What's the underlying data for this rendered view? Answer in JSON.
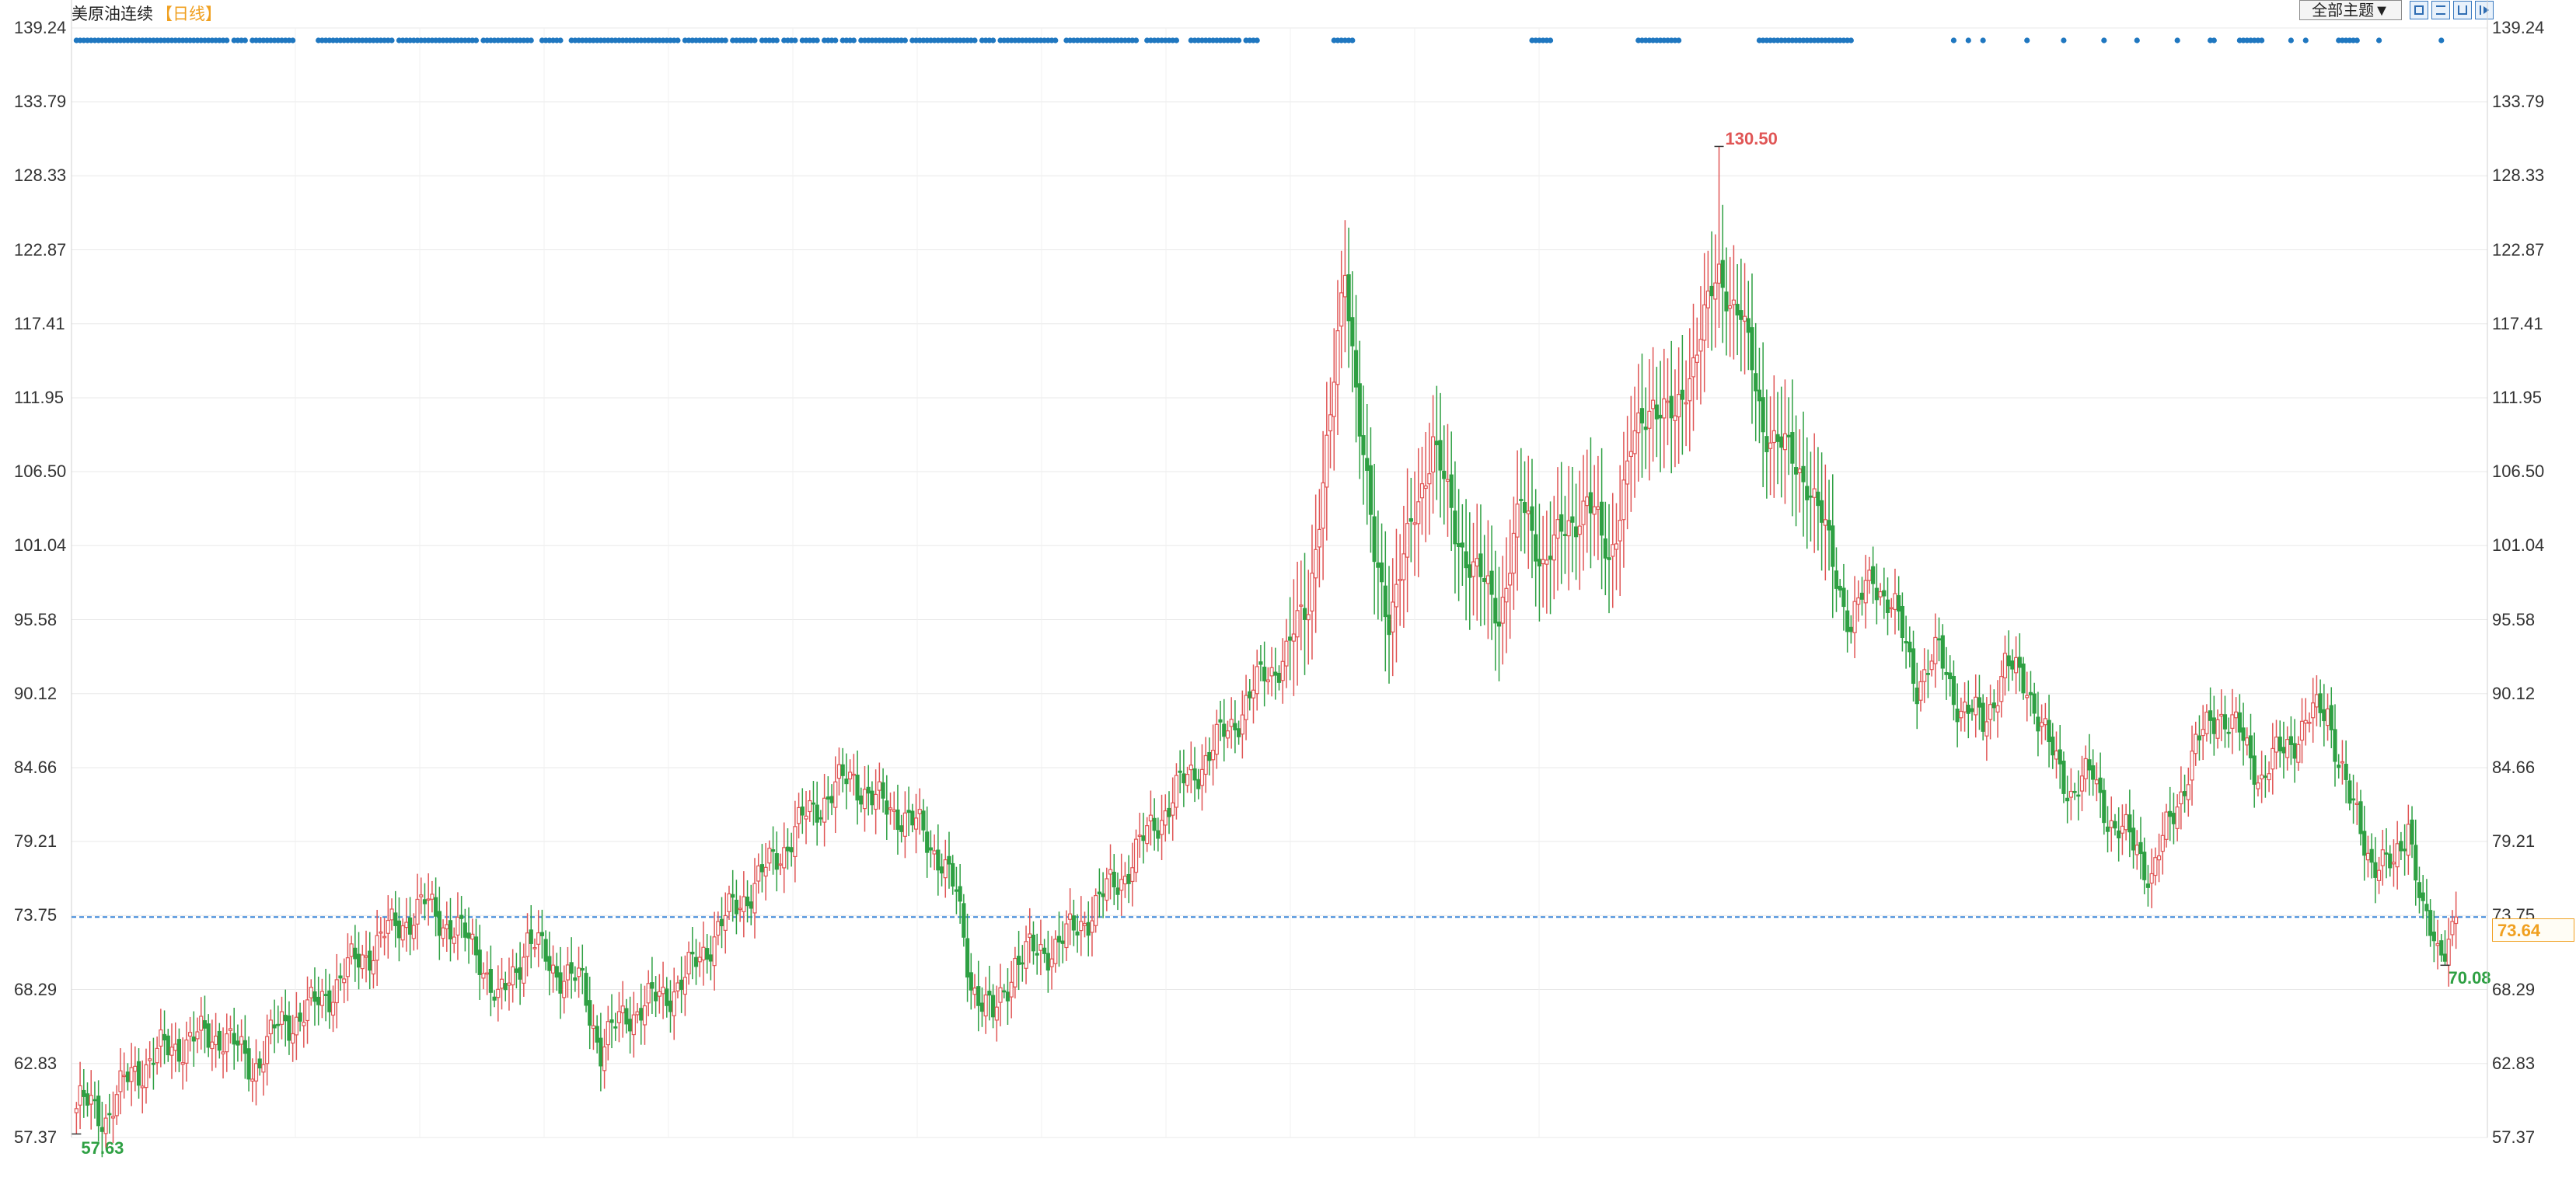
{
  "header": {
    "title": "美原油连续",
    "period_tag": "【日线】"
  },
  "toolbar": {
    "theme_label": "全部主题▼",
    "tools": [
      "fit-all-icon",
      "fit-width-icon",
      "chart-mode-icon",
      "jump-latest-icon"
    ]
  },
  "colors": {
    "up": "#e05555",
    "down": "#2ea043",
    "dots": "#1f77c0",
    "last_price": "#f0a020",
    "grid": "#e8e8e8",
    "hline": "#3a86d8"
  },
  "chart_data": {
    "type": "candlestick",
    "y_ticks": [
      "139.24",
      "133.79",
      "128.33",
      "122.87",
      "117.41",
      "111.95",
      "106.50",
      "101.04",
      "95.58",
      "90.12",
      "84.66",
      "79.21",
      "73.75",
      "68.29",
      "62.83",
      "57.37"
    ],
    "ylim": [
      57.37,
      139.24
    ],
    "last_price": "73.64",
    "max": {
      "label": "130.50",
      "value": 130.5
    },
    "min_start": {
      "label": "57.63",
      "value": 57.63
    },
    "min_end": {
      "label": "70.08",
      "value": 70.08
    },
    "close_path": [
      [
        0,
        60.0
      ],
      [
        8,
        59.0
      ],
      [
        15,
        62.0
      ],
      [
        22,
        63.5
      ],
      [
        30,
        64.5
      ],
      [
        40,
        65.0
      ],
      [
        48,
        62.5
      ],
      [
        55,
        65.5
      ],
      [
        65,
        67.0
      ],
      [
        75,
        70.0
      ],
      [
        85,
        72.5
      ],
      [
        95,
        74.5
      ],
      [
        102,
        73.0
      ],
      [
        110,
        71.0
      ],
      [
        115,
        67.0
      ],
      [
        123,
        72.0
      ],
      [
        130,
        70.0
      ],
      [
        138,
        68.5
      ],
      [
        143,
        64.0
      ],
      [
        150,
        66.5
      ],
      [
        158,
        67.5
      ],
      [
        166,
        69.0
      ],
      [
        173,
        72.0
      ],
      [
        180,
        74.5
      ],
      [
        188,
        77.0
      ],
      [
        196,
        80.0
      ],
      [
        204,
        82.5
      ],
      [
        212,
        84.0
      ],
      [
        218,
        82.0
      ],
      [
        224,
        81.5
      ],
      [
        230,
        80.0
      ],
      [
        236,
        78.0
      ],
      [
        240,
        75.0
      ],
      [
        244,
        69.0
      ],
      [
        250,
        66.0
      ],
      [
        256,
        70.5
      ],
      [
        262,
        71.0
      ],
      [
        270,
        72.0
      ],
      [
        278,
        74.5
      ],
      [
        286,
        77.0
      ],
      [
        294,
        80.5
      ],
      [
        302,
        83.5
      ],
      [
        310,
        86.0
      ],
      [
        318,
        89.0
      ],
      [
        324,
        91.5
      ],
      [
        330,
        93.0
      ],
      [
        336,
        97.0
      ],
      [
        342,
        110.0
      ],
      [
        346,
        122.0
      ],
      [
        350,
        110.0
      ],
      [
        354,
        100.0
      ],
      [
        358,
        96.0
      ],
      [
        364,
        102.0
      ],
      [
        370,
        109.0
      ],
      [
        376,
        102.0
      ],
      [
        382,
        99.0
      ],
      [
        388,
        96.0
      ],
      [
        394,
        104.0
      ],
      [
        400,
        100.0
      ],
      [
        406,
        102.0
      ],
      [
        412,
        104.5
      ],
      [
        418,
        100.0
      ],
      [
        424,
        108.0
      ],
      [
        430,
        112.0
      ],
      [
        436,
        110.0
      ],
      [
        442,
        116.0
      ],
      [
        448,
        121.0
      ],
      [
        454,
        118.0
      ],
      [
        460,
        110.0
      ],
      [
        466,
        108.0
      ],
      [
        472,
        106.0
      ],
      [
        478,
        101.0
      ],
      [
        484,
        95.0
      ],
      [
        490,
        99.0
      ],
      [
        496,
        96.0
      ],
      [
        502,
        91.0
      ],
      [
        508,
        93.0
      ],
      [
        514,
        89.0
      ],
      [
        520,
        88.0
      ],
      [
        526,
        92.0
      ],
      [
        532,
        91.0
      ],
      [
        538,
        86.0
      ],
      [
        544,
        83.0
      ],
      [
        550,
        84.0
      ],
      [
        556,
        80.0
      ],
      [
        562,
        79.0
      ],
      [
        566,
        76.5
      ],
      [
        572,
        81.5
      ],
      [
        578,
        86.0
      ],
      [
        584,
        89.0
      ],
      [
        590,
        87.0
      ],
      [
        596,
        84.0
      ],
      [
        602,
        86.0
      ],
      [
        608,
        88.0
      ],
      [
        614,
        89.0
      ],
      [
        620,
        82.0
      ],
      [
        626,
        78.0
      ],
      [
        632,
        77.0
      ],
      [
        636,
        81.0
      ],
      [
        640,
        73.5
      ],
      [
        644,
        71.0
      ],
      [
        649,
        73.6
      ]
    ],
    "signal_dots": [
      [
        0,
        41
      ],
      [
        43,
        45
      ],
      [
        46,
        46
      ],
      [
        48,
        59
      ],
      [
        66,
        86
      ],
      [
        88,
        109
      ],
      [
        111,
        124
      ],
      [
        127,
        132
      ],
      [
        135,
        153
      ],
      [
        154,
        164
      ],
      [
        166,
        177
      ],
      [
        179,
        182
      ],
      [
        183,
        185
      ],
      [
        187,
        191
      ],
      [
        193,
        196
      ],
      [
        198,
        202
      ],
      [
        204,
        207
      ],
      [
        209,
        212
      ],
      [
        214,
        226
      ],
      [
        228,
        245
      ],
      [
        247,
        250
      ],
      [
        252,
        267
      ],
      [
        270,
        289
      ],
      [
        292,
        300
      ],
      [
        304,
        317
      ],
      [
        319,
        322
      ],
      [
        343,
        348
      ],
      [
        397,
        402
      ],
      [
        426,
        437
      ],
      [
        459,
        484
      ],
      [
        512,
        512
      ],
      [
        516,
        516
      ],
      [
        520,
        520
      ],
      [
        532,
        532
      ],
      [
        542,
        542
      ],
      [
        553,
        553
      ],
      [
        562,
        562
      ],
      [
        573,
        573
      ],
      [
        582,
        583
      ],
      [
        590,
        596
      ],
      [
        604,
        604
      ],
      [
        608,
        608
      ],
      [
        617,
        622
      ],
      [
        628,
        628
      ],
      [
        645,
        645
      ]
    ]
  }
}
